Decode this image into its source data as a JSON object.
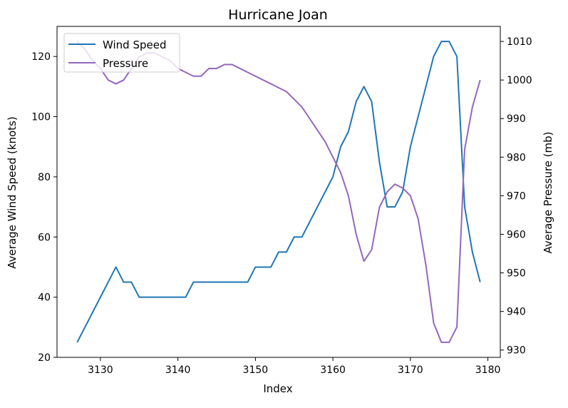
{
  "chart_data": {
    "type": "line",
    "title": "Hurricane Joan",
    "xlabel": "Index",
    "ylabel_left": "Average Wind Speed (knots)",
    "ylabel_right": "Average Pressure (mb)",
    "xlim": [
      3124.4,
      3181.6
    ],
    "ylim_left": [
      20,
      130
    ],
    "ylim_right": [
      928.1,
      1013.9
    ],
    "x_ticks": [
      3130,
      3140,
      3150,
      3160,
      3170,
      3180
    ],
    "y_left_ticks": [
      20,
      40,
      60,
      80,
      100,
      120
    ],
    "y_right_ticks": [
      930,
      940,
      950,
      960,
      970,
      980,
      990,
      1000,
      1010
    ],
    "grid": false,
    "legend_position": "top-left",
    "x": [
      3127,
      3128,
      3129,
      3130,
      3131,
      3132,
      3133,
      3134,
      3135,
      3136,
      3137,
      3138,
      3139,
      3140,
      3141,
      3142,
      3143,
      3144,
      3145,
      3146,
      3147,
      3148,
      3149,
      3150,
      3151,
      3152,
      3153,
      3154,
      3155,
      3156,
      3157,
      3158,
      3159,
      3160,
      3161,
      3162,
      3163,
      3164,
      3165,
      3166,
      3167,
      3168,
      3169,
      3170,
      3171,
      3172,
      3173,
      3174,
      3175,
      3176,
      3177,
      3178,
      3179
    ],
    "series": [
      {
        "name": "Wind Speed",
        "axis": "left",
        "color": "#1f77b4",
        "values": [
          25,
          30,
          35,
          40,
          45,
          50,
          45,
          45,
          40,
          40,
          40,
          40,
          40,
          40,
          40,
          45,
          45,
          45,
          45,
          45,
          45,
          45,
          45,
          50,
          50,
          50,
          55,
          55,
          60,
          60,
          65,
          70,
          75,
          80,
          90,
          95,
          105,
          110,
          105,
          85,
          70,
          70,
          75,
          90,
          100,
          110,
          120,
          125,
          125,
          120,
          70,
          55,
          45
        ]
      },
      {
        "name": "Pressure",
        "axis": "right",
        "color": "#9467bd",
        "values": [
          1010,
          1008,
          1005,
          1003,
          1000,
          999,
          1000,
          1003,
          1006,
          1007,
          1007,
          1006,
          1005,
          1003,
          1002,
          1001,
          1001,
          1003,
          1003,
          1004,
          1004,
          1003,
          1002,
          1001,
          1000,
          999,
          998,
          997,
          995,
          993,
          990,
          987,
          984,
          980,
          976,
          970,
          960,
          953,
          956,
          967,
          971,
          973,
          972,
          970,
          964,
          952,
          937,
          932,
          932,
          936,
          982,
          993,
          1000
        ]
      }
    ]
  }
}
